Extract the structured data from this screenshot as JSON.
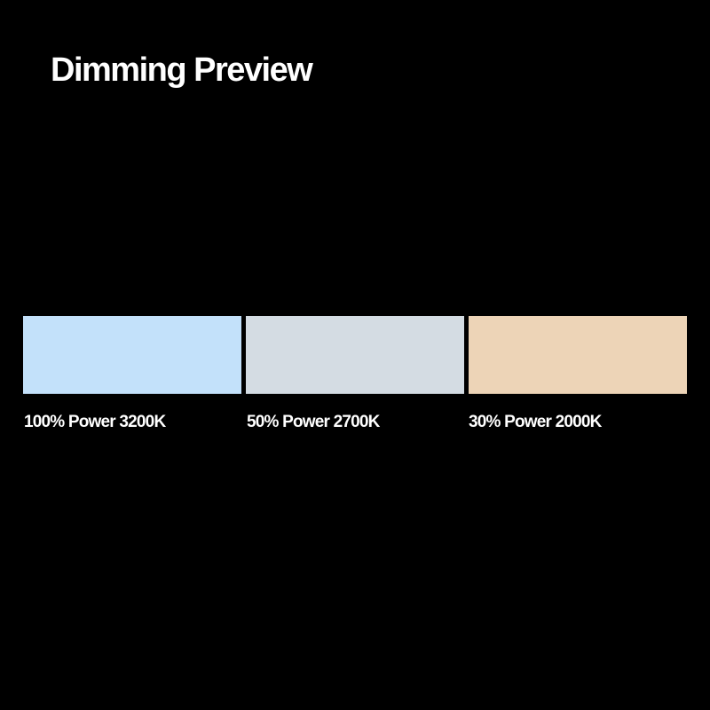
{
  "title": "Dimming Preview",
  "swatches": [
    {
      "label": "100% Power 3200K",
      "power_percent": 100,
      "color_temperature_k": 3200,
      "color": "#c3e1fa"
    },
    {
      "label": "50% Power 2700K",
      "power_percent": 50,
      "color_temperature_k": 2700,
      "color": "#d4dce3"
    },
    {
      "label": "30% Power 2000K",
      "power_percent": 30,
      "color_temperature_k": 2000,
      "color": "#edd4b7"
    }
  ]
}
